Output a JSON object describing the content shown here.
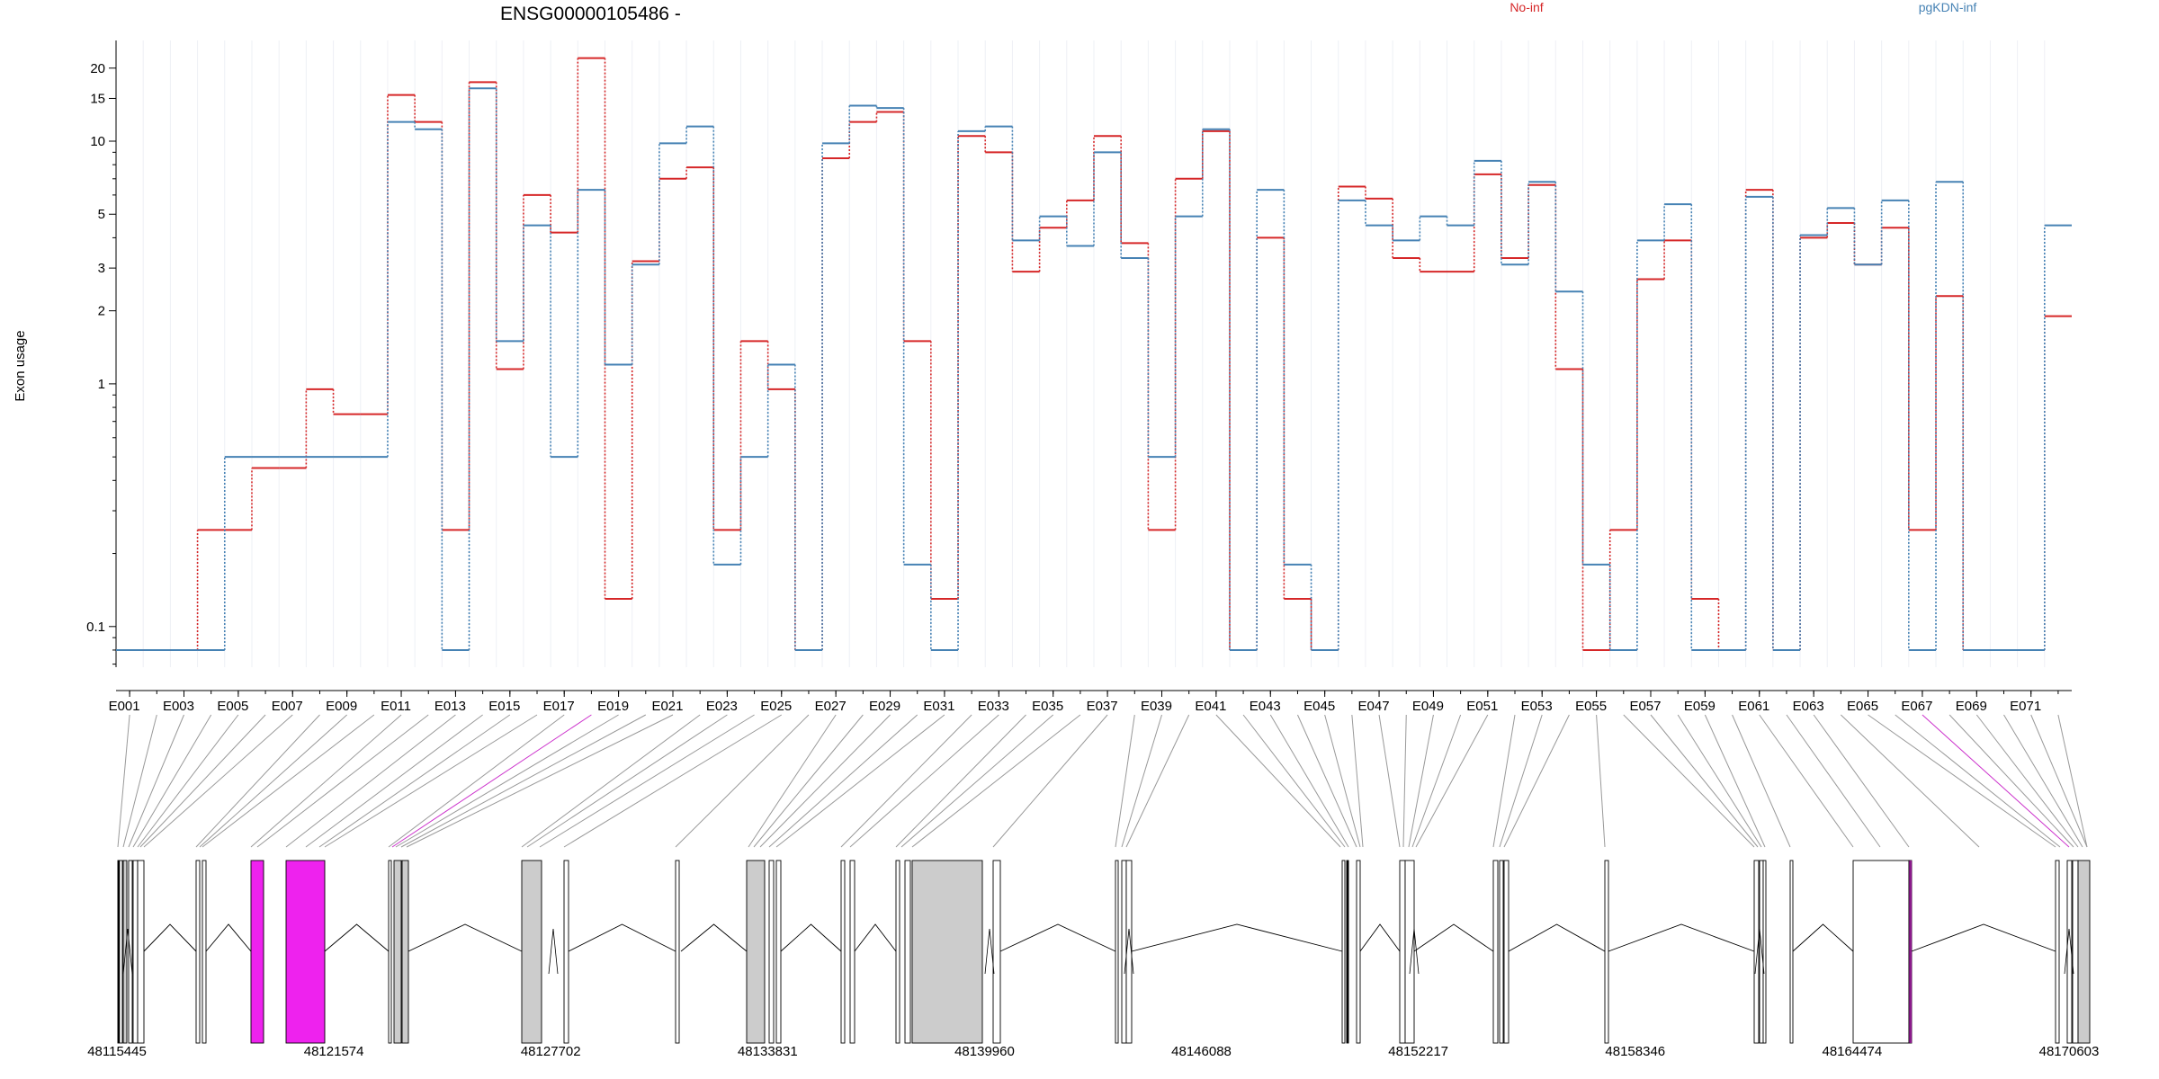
{
  "chart_data": {
    "type": "line",
    "title": "ENSG00000105486 -",
    "ylabel": "Exon usage",
    "y_scale": "log",
    "ylim": [
      0.068,
      26
    ],
    "y_ticks": [
      {
        "value": 0.1,
        "label": "0.1"
      },
      {
        "value": 1,
        "label": "1"
      },
      {
        "value": 2,
        "label": "2"
      },
      {
        "value": 3,
        "label": "3"
      },
      {
        "value": 5,
        "label": "5"
      },
      {
        "value": 10,
        "label": "10"
      },
      {
        "value": 15,
        "label": "15"
      },
      {
        "value": 20,
        "label": "20"
      }
    ],
    "grid": true,
    "legend_position": "top",
    "exons": [
      "E001",
      "E002",
      "E003",
      "E004",
      "E005",
      "E006",
      "E007",
      "E008",
      "E009",
      "E010",
      "E011",
      "E012",
      "E013",
      "E014",
      "E015",
      "E016",
      "E017",
      "E018",
      "E019",
      "E020",
      "E021",
      "E022",
      "E023",
      "E024",
      "E025",
      "E026",
      "E027",
      "E028",
      "E029",
      "E030",
      "E031",
      "E032",
      "E033",
      "E034",
      "E035",
      "E036",
      "E037",
      "E038",
      "E039",
      "E040",
      "E041",
      "E042",
      "E043",
      "E044",
      "E045",
      "E046",
      "E047",
      "E048",
      "E049",
      "E050",
      "E051",
      "E052",
      "E053",
      "E054",
      "E055",
      "E056",
      "E057",
      "E058",
      "E059",
      "E060",
      "E061",
      "E062",
      "E063",
      "E064",
      "E065",
      "E066",
      "E067",
      "E068",
      "E069",
      "E070",
      "E071",
      "E072"
    ],
    "tick_labels": [
      "E001",
      "E003",
      "E005",
      "E007",
      "E009",
      "E011",
      "E013",
      "E015",
      "E017",
      "E019",
      "E021",
      "E023",
      "E025",
      "E027",
      "E029",
      "E031",
      "E033",
      "E035",
      "E037",
      "E039",
      "E041",
      "E043",
      "E045",
      "E047",
      "E049",
      "E051",
      "E053",
      "E055",
      "E057",
      "E059",
      "E061",
      "E063",
      "E065",
      "E067",
      "E069",
      "E071"
    ],
    "series": [
      {
        "name": "No-inf",
        "color": "#d62728",
        "values": [
          0.08,
          0.08,
          0.08,
          0.25,
          0.25,
          0.45,
          0.45,
          0.95,
          0.75,
          0.75,
          15.5,
          12.0,
          0.25,
          17.5,
          1.15,
          6.0,
          4.2,
          22.0,
          0.13,
          3.2,
          7.0,
          7.8,
          0.25,
          1.5,
          0.95,
          0.08,
          8.5,
          12.0,
          13.2,
          1.5,
          0.13,
          10.5,
          9.0,
          2.9,
          4.4,
          5.7,
          10.5,
          3.8,
          0.25,
          7.0,
          11.0,
          0.08,
          4.0,
          0.13,
          0.08,
          6.5,
          5.8,
          3.3,
          2.9,
          2.9,
          7.3,
          3.3,
          6.6,
          1.15,
          0.08,
          0.25,
          2.7,
          3.9,
          0.13,
          0.08,
          6.3,
          0.08,
          4.0,
          4.6,
          3.1,
          4.4,
          0.25,
          2.3,
          0.08,
          0.08,
          0.08,
          1.9
        ]
      },
      {
        "name": "pgKDN-inf",
        "color": "#4682b4",
        "values": [
          0.08,
          0.08,
          0.08,
          0.08,
          0.5,
          0.5,
          0.5,
          0.5,
          0.5,
          0.5,
          12.0,
          11.2,
          0.08,
          16.5,
          1.5,
          4.5,
          0.5,
          6.3,
          1.2,
          3.1,
          9.8,
          11.5,
          0.18,
          0.5,
          1.2,
          0.08,
          9.8,
          14.0,
          13.7,
          0.18,
          0.08,
          11.0,
          11.5,
          3.9,
          4.9,
          3.7,
          9.0,
          3.3,
          0.5,
          4.9,
          11.2,
          0.08,
          6.3,
          0.18,
          0.08,
          5.7,
          4.5,
          3.9,
          4.9,
          4.5,
          8.3,
          3.1,
          6.8,
          2.4,
          0.18,
          0.08,
          3.9,
          5.5,
          0.08,
          0.08,
          5.9,
          0.08,
          4.1,
          5.3,
          3.1,
          5.7,
          0.08,
          6.8,
          0.08,
          0.08,
          0.08,
          4.5
        ]
      }
    ]
  },
  "gene_model": {
    "coordinate_labels": [
      "48115445",
      "48121574",
      "48127702",
      "48133831",
      "48139960",
      "48146088",
      "48152217",
      "48158346",
      "48164474",
      "48170603"
    ],
    "highlight_color": "#ee22ee",
    "box_fill": "#cccccc"
  }
}
